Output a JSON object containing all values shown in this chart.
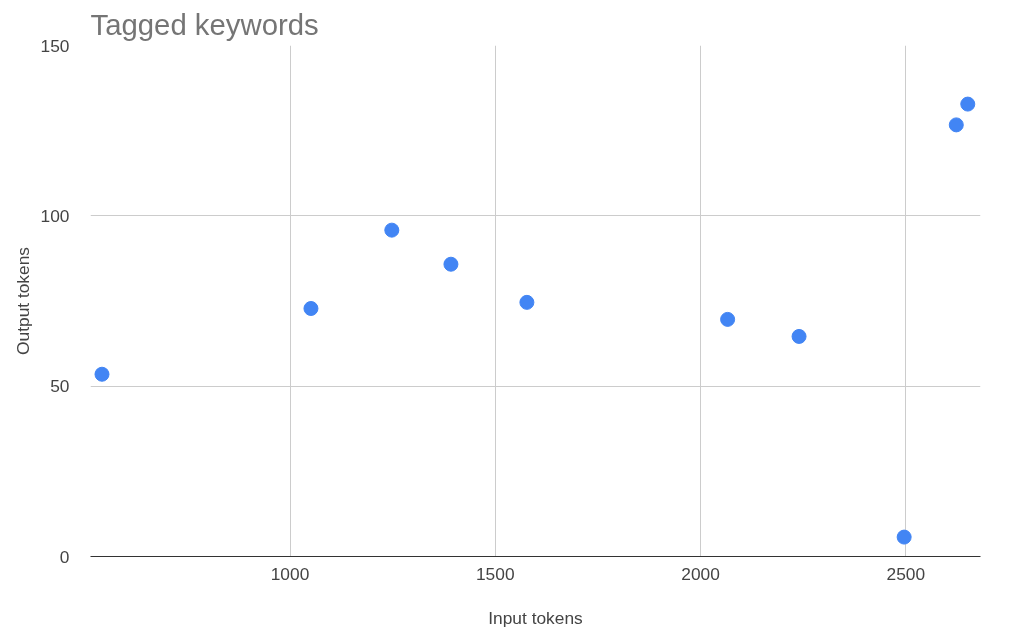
{
  "chart_data": {
    "type": "scatter",
    "title": "Tagged keywords",
    "xlabel": "Input tokens",
    "ylabel": "Output tokens",
    "x": [
      542,
      1051,
      1248,
      1392,
      1577,
      2066,
      2240,
      2496,
      2623,
      2651
    ],
    "series": [
      {
        "color": "#4285f4",
        "values": [
          53.5,
          72.8,
          95.8,
          85.8,
          74.6,
          69.6,
          64.6,
          5.7,
          126.7,
          132.8
        ]
      }
    ],
    "xlim": [
      514,
      2682
    ],
    "xticks": [
      1000,
      1500,
      2000,
      2500
    ],
    "ylim": [
      0,
      150
    ],
    "yticks": [
      0,
      50,
      100,
      150
    ],
    "grid": true,
    "marker": "circle"
  }
}
